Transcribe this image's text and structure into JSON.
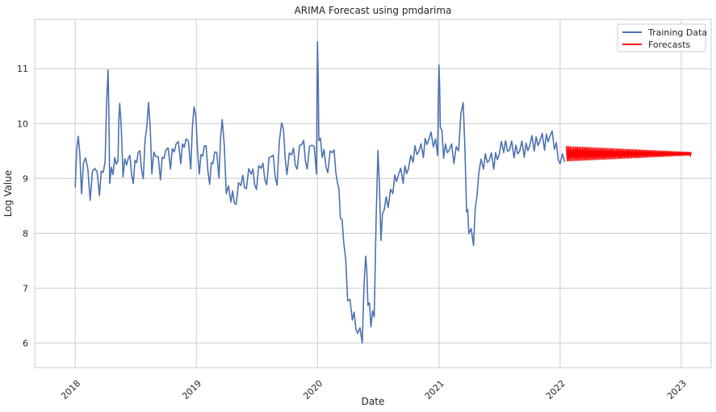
{
  "chart_data": {
    "type": "line",
    "title": "ARIMA Forecast using pmdarima",
    "xlabel": "Date",
    "ylabel": "Log Value",
    "xlim": [
      "2017-09-01",
      "2023-04-01"
    ],
    "ylim": [
      5.55,
      11.9
    ],
    "xticks": [
      "2018",
      "2019",
      "2020",
      "2021",
      "2022",
      "2023"
    ],
    "yticks": [
      6,
      7,
      8,
      9,
      10,
      11
    ],
    "grid": true,
    "legend_position": "top-right",
    "series": [
      {
        "name": "Training Data",
        "color": "#4c72b0",
        "x": [
          "2018-01-01",
          "2018-01-10",
          "2018-01-20",
          "2018-02-01",
          "2018-02-15",
          "2018-03-01",
          "2018-03-15",
          "2018-04-01",
          "2018-04-10",
          "2018-04-15",
          "2018-04-25",
          "2018-05-10",
          "2018-05-15",
          "2018-05-25",
          "2018-06-10",
          "2018-06-25",
          "2018-07-10",
          "2018-07-25",
          "2018-08-10",
          "2018-08-20",
          "2018-09-01",
          "2018-09-15",
          "2018-10-01",
          "2018-10-15",
          "2018-11-01",
          "2018-11-15",
          "2018-12-01",
          "2018-12-15",
          "2018-12-25",
          "2019-01-10",
          "2019-01-25",
          "2019-02-10",
          "2019-02-25",
          "2019-03-10",
          "2019-03-20",
          "2019-04-01",
          "2019-04-15",
          "2019-05-01",
          "2019-05-15",
          "2019-06-01",
          "2019-06-15",
          "2019-07-01",
          "2019-07-15",
          "2019-08-01",
          "2019-08-15",
          "2019-09-01",
          "2019-09-15",
          "2019-10-01",
          "2019-10-15",
          "2019-11-01",
          "2019-11-15",
          "2019-12-01",
          "2019-12-15",
          "2019-12-29",
          "2020-01-01",
          "2020-01-05",
          "2020-01-15",
          "2020-02-01",
          "2020-02-15",
          "2020-03-01",
          "2020-03-10",
          "2020-03-20",
          "2020-04-01",
          "2020-04-15",
          "2020-05-01",
          "2020-05-15",
          "2020-05-25",
          "2020-06-01",
          "2020-06-10",
          "2020-06-20",
          "2020-07-01",
          "2020-07-10",
          "2020-07-20",
          "2020-08-01",
          "2020-08-15",
          "2020-09-01",
          "2020-09-15",
          "2020-10-01",
          "2020-10-15",
          "2020-11-01",
          "2020-11-15",
          "2020-12-01",
          "2020-12-15",
          "2020-12-28",
          "2021-01-01",
          "2021-01-05",
          "2021-01-15",
          "2021-02-01",
          "2021-02-15",
          "2021-03-01",
          "2021-03-15",
          "2021-03-25",
          "2021-04-01",
          "2021-04-15",
          "2021-05-01",
          "2021-05-15",
          "2021-06-01",
          "2021-06-15",
          "2021-07-01",
          "2021-07-15",
          "2021-08-01",
          "2021-08-15",
          "2021-09-01",
          "2021-09-15",
          "2021-10-01",
          "2021-10-15",
          "2021-11-01",
          "2021-11-15",
          "2021-12-01",
          "2021-12-15",
          "2022-01-01",
          "2022-01-15"
        ],
        "y": [
          8.9,
          9.9,
          8.8,
          9.5,
          8.7,
          9.3,
          8.8,
          9.4,
          11.1,
          9.0,
          9.2,
          9.4,
          10.5,
          9.1,
          9.5,
          9.0,
          9.6,
          9.1,
          10.5,
          9.2,
          9.5,
          9.1,
          9.6,
          9.3,
          9.7,
          9.4,
          9.8,
          9.3,
          10.4,
          9.2,
          9.7,
          9.0,
          9.6,
          9.1,
          10.2,
          8.8,
          8.7,
          8.6,
          9.0,
          8.9,
          9.2,
          8.9,
          9.3,
          9.0,
          9.5,
          9.0,
          10.1,
          9.2,
          9.5,
          9.3,
          9.7,
          9.3,
          9.7,
          9.2,
          11.6,
          9.8,
          9.5,
          9.2,
          9.6,
          9.0,
          8.4,
          7.9,
          6.9,
          6.5,
          6.3,
          6.1,
          7.7,
          6.8,
          6.4,
          6.6,
          9.6,
          8.0,
          8.5,
          8.6,
          8.8,
          9.2,
          9.0,
          9.3,
          9.4,
          9.6,
          9.5,
          9.8,
          9.7,
          9.5,
          11.2,
          10.0,
          9.5,
          9.6,
          9.4,
          9.6,
          10.5,
          8.5,
          8.1,
          7.9,
          9.2,
          9.3,
          9.4,
          9.3,
          9.5,
          9.6,
          9.6,
          9.5,
          9.6,
          9.5,
          9.7,
          9.6,
          9.8,
          9.6,
          9.9,
          9.6,
          9.4,
          9.3
        ]
      },
      {
        "name": "Forecasts",
        "color": "#ff0000",
        "x": [
          "2022-01-20",
          "2023-01-31"
        ],
        "y": [
          9.45,
          9.45
        ],
        "amplitude": [
          0.14,
          0.03
        ]
      }
    ]
  }
}
